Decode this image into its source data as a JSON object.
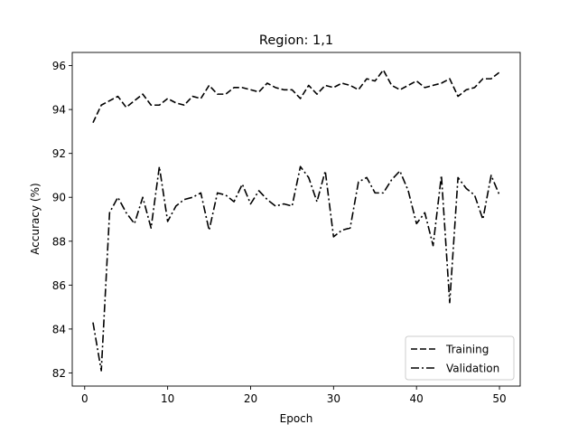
{
  "chart_data": {
    "type": "line",
    "title": "Region: 1,1",
    "xlabel": "Epoch",
    "ylabel": "Accuracy (%)",
    "xlim": [
      -1.5,
      52.5
    ],
    "ylim": [
      81.4,
      96.6
    ],
    "xticks": [
      0,
      10,
      20,
      30,
      40,
      50
    ],
    "yticks": [
      82,
      84,
      86,
      88,
      90,
      92,
      94,
      96
    ],
    "grid": false,
    "legend_position": "lower-right",
    "x": [
      1,
      2,
      3,
      4,
      5,
      6,
      7,
      8,
      9,
      10,
      11,
      12,
      13,
      14,
      15,
      16,
      17,
      18,
      19,
      20,
      21,
      22,
      23,
      24,
      25,
      26,
      27,
      28,
      29,
      30,
      31,
      32,
      33,
      34,
      35,
      36,
      37,
      38,
      39,
      40,
      41,
      42,
      43,
      44,
      45,
      46,
      47,
      48,
      49,
      50
    ],
    "series": [
      {
        "name": "Training",
        "dash": "dashed",
        "values": [
          93.4,
          94.2,
          94.4,
          94.6,
          94.1,
          94.4,
          94.7,
          94.2,
          94.2,
          94.5,
          94.3,
          94.2,
          94.6,
          94.5,
          95.1,
          94.7,
          94.7,
          95.0,
          95.0,
          94.9,
          94.8,
          95.2,
          95.0,
          94.9,
          94.9,
          94.5,
          95.1,
          94.7,
          95.1,
          95.0,
          95.2,
          95.1,
          94.9,
          95.4,
          95.3,
          95.8,
          95.1,
          94.9,
          95.1,
          95.3,
          95.0,
          95.1,
          95.2,
          95.4,
          94.6,
          94.9,
          95.0,
          95.4,
          95.4,
          95.7
        ]
      },
      {
        "name": "Validation",
        "dash": "dashdot",
        "values": [
          84.3,
          82.1,
          89.3,
          90.0,
          89.3,
          88.8,
          90.0,
          88.6,
          91.4,
          88.9,
          89.6,
          89.9,
          90.0,
          90.2,
          88.5,
          90.2,
          90.1,
          89.8,
          90.6,
          89.7,
          90.3,
          89.9,
          89.6,
          89.7,
          89.6,
          91.4,
          90.9,
          89.8,
          91.2,
          88.2,
          88.5,
          88.6,
          90.7,
          90.9,
          90.2,
          90.2,
          90.8,
          91.2,
          90.3,
          88.8,
          89.3,
          87.8,
          91.0,
          85.2,
          90.9,
          90.4,
          90.1,
          89.0,
          91.0,
          90.1
        ]
      }
    ]
  }
}
